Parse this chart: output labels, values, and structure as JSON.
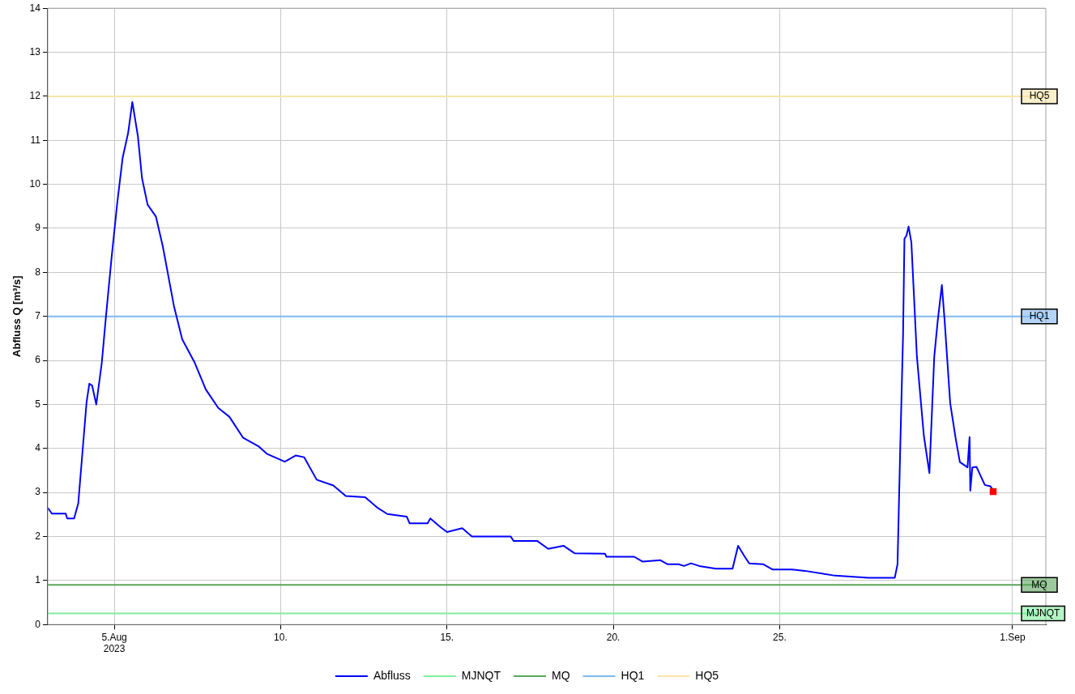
{
  "chart_data": {
    "type": "line",
    "ylabel": "Abfluss Q [m³/s]",
    "xlim": [
      "2023-08-03",
      "2023-09-02"
    ],
    "xticks": [
      {
        "value": "2023-08-05",
        "label": "5.Aug\n2023"
      },
      {
        "value": "2023-08-10",
        "label": "10."
      },
      {
        "value": "2023-08-15",
        "label": "15."
      },
      {
        "value": "2023-08-20",
        "label": "20."
      },
      {
        "value": "2023-08-25",
        "label": "25."
      },
      {
        "value": "2023-09-01",
        "label": "1.Sep"
      }
    ],
    "ylim": [
      0,
      14
    ],
    "yticks": [
      0,
      1,
      2,
      3,
      4,
      5,
      6,
      7,
      8,
      9,
      10,
      11,
      12,
      13,
      14
    ],
    "grid": true,
    "legend": "bottom",
    "series": [
      {
        "name": "Abfluss",
        "color": "#0000ff",
        "x": [
          "2023-08-03T00:00",
          "2023-08-03T03:00",
          "2023-08-03T13:00",
          "2023-08-03T14:00",
          "2023-08-03T19:00",
          "2023-08-03T22:00",
          "2023-08-04T01:00",
          "2023-08-04T04:00",
          "2023-08-04T06:00",
          "2023-08-04T08:00",
          "2023-08-04T11:00",
          "2023-08-04T15:00",
          "2023-08-04T18:00",
          "2023-08-04T22:00",
          "2023-08-05T02:00",
          "2023-08-05T06:00",
          "2023-08-05T10:00",
          "2023-08-05T13:00",
          "2023-08-05T17:00",
          "2023-08-05T20:00",
          "2023-08-06T00:00",
          "2023-08-06T06:00",
          "2023-08-06T11:00",
          "2023-08-06T19:00",
          "2023-08-07T01:00",
          "2023-08-07T10:00",
          "2023-08-07T18:00",
          "2023-08-08T03:00",
          "2023-08-08T11:00",
          "2023-08-08T21:00",
          "2023-08-09T08:00",
          "2023-08-09T14:00",
          "2023-08-10T03:00",
          "2023-08-10T11:00",
          "2023-08-10T17:00",
          "2023-08-11T02:00",
          "2023-08-11T14:00",
          "2023-08-11T23:00",
          "2023-08-12T13:00",
          "2023-08-12T22:00",
          "2023-08-13T05:00",
          "2023-08-13T19:00",
          "2023-08-13T21:00",
          "2023-08-14T10:00",
          "2023-08-14T12:00",
          "2023-08-14T19:00",
          "2023-08-15T00:00",
          "2023-08-15T11:00",
          "2023-08-15T18:00",
          "2023-08-16T22:00",
          "2023-08-17T00:00",
          "2023-08-17T17:00",
          "2023-08-18T01:00",
          "2023-08-18T12:00",
          "2023-08-18T20:00",
          "2023-08-19T18:00",
          "2023-08-19T19:00",
          "2023-08-20T15:00",
          "2023-08-20T21:00",
          "2023-08-21T10:00",
          "2023-08-21T15:00",
          "2023-08-21T23:00",
          "2023-08-22T03:00",
          "2023-08-22T08:00",
          "2023-08-22T14:00",
          "2023-08-23T02:00",
          "2023-08-23T14:00",
          "2023-08-23T18:00",
          "2023-08-23T23:00",
          "2023-08-24T02:00",
          "2023-08-24T12:00",
          "2023-08-24T19:00",
          "2023-08-25T09:00",
          "2023-08-25T18:00",
          "2023-08-26T16:00",
          "2023-08-27T16:00",
          "2023-08-28T11:00",
          "2023-08-28T13:00",
          "2023-08-28T15:00",
          "2023-08-28T17:00",
          "2023-08-28T18:00",
          "2023-08-28T19:30",
          "2023-08-28T21:00",
          "2023-08-28T23:00",
          "2023-08-29T03:00",
          "2023-08-29T08:00",
          "2023-08-29T12:00",
          "2023-08-29T15:30",
          "2023-08-29T18:00",
          "2023-08-29T21:00",
          "2023-08-29T23:00",
          "2023-08-30T03:00",
          "2023-08-30T07:00",
          "2023-08-30T10:00",
          "2023-08-30T15:30",
          "2023-08-30T17:00",
          "2023-08-30T17:30",
          "2023-08-30T19:00",
          "2023-08-30T22:00",
          "2023-08-31T04:00",
          "2023-08-31T08:00",
          "2023-08-31T10:00"
        ],
        "values": [
          2.65,
          2.52,
          2.52,
          2.41,
          2.41,
          2.75,
          3.9,
          5.05,
          5.47,
          5.43,
          5.0,
          5.95,
          7.0,
          8.32,
          9.54,
          10.6,
          11.17,
          11.87,
          11.1,
          10.14,
          9.54,
          9.27,
          8.59,
          7.24,
          6.48,
          5.95,
          5.34,
          4.92,
          4.72,
          4.24,
          4.05,
          3.88,
          3.7,
          3.84,
          3.8,
          3.29,
          3.16,
          2.92,
          2.89,
          2.65,
          2.51,
          2.45,
          2.3,
          2.3,
          2.41,
          2.22,
          2.1,
          2.19,
          2.0,
          2.0,
          1.9,
          1.9,
          1.72,
          1.79,
          1.62,
          1.61,
          1.54,
          1.54,
          1.43,
          1.46,
          1.37,
          1.37,
          1.33,
          1.39,
          1.33,
          1.27,
          1.27,
          1.79,
          1.53,
          1.39,
          1.37,
          1.25,
          1.25,
          1.22,
          1.11,
          1.06,
          1.06,
          1.37,
          4.05,
          6.57,
          8.76,
          8.84,
          9.04,
          8.68,
          6.08,
          4.29,
          3.44,
          6.08,
          6.9,
          7.71,
          6.9,
          5.03,
          4.22,
          3.69,
          3.57,
          4.26,
          3.04,
          3.57,
          3.58,
          3.17,
          3.14,
          3.05
        ]
      },
      {
        "type": "scatter",
        "color": "#ff0000",
        "marker": "square",
        "x": [
          "2023-08-31T10:00"
        ],
        "values": [
          3.02
        ]
      }
    ],
    "ref_lines": [
      {
        "axis": "y",
        "value": 0.25,
        "label": "MJNQT",
        "color": "#80ee9c"
      },
      {
        "axis": "y",
        "value": 0.9,
        "label": "MQ",
        "color": "#5aa55a"
      },
      {
        "axis": "y",
        "value": 7,
        "label": "HQ1",
        "color": "#80b8f0"
      },
      {
        "axis": "y",
        "value": 12,
        "label": "HQ5",
        "color": "#f8e4a8"
      }
    ]
  }
}
